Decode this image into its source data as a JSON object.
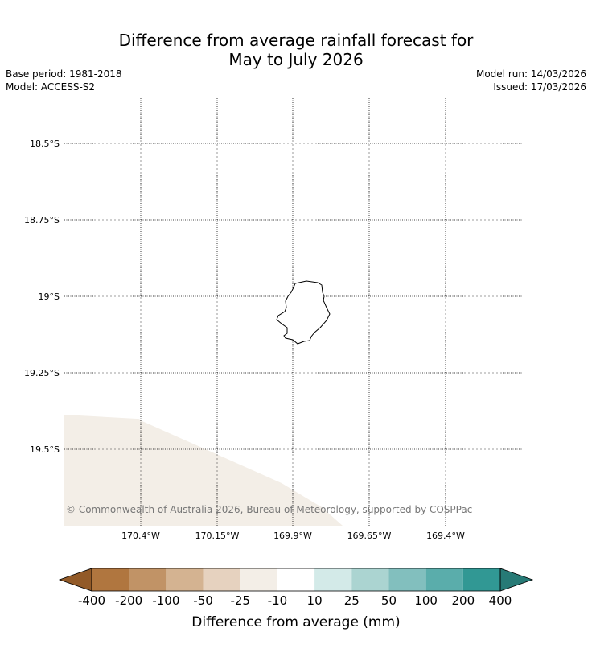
{
  "header": {
    "title_line1": "Difference from average rainfall forecast for",
    "title_line2": "May to July 2026",
    "base_period": "Base period: 1981-2018",
    "model": "Model: ACCESS-S2",
    "model_run": "Model run: 14/03/2026",
    "issued": "Issued: 17/03/2026"
  },
  "map": {
    "lat_labels": [
      "18.5°S",
      "18.75°S",
      "19°S",
      "19.25°S",
      "19.5°S"
    ],
    "lon_labels": [
      "170.4°W",
      "170.15°W",
      "169.9°W",
      "169.65°W",
      "169.4°W"
    ],
    "copyright": "© Commonwealth of Australia 2026, Bureau of Meteorology, supported by COSPPac",
    "land_name": "Niue",
    "forecast_fill_color": "#f3eee7"
  },
  "colorbar": {
    "title": "Difference from average (mm)",
    "tick_labels": [
      "-400",
      "-200",
      "-100",
      "-50",
      "-25",
      "-10",
      "10",
      "25",
      "50",
      "100",
      "200",
      "400"
    ],
    "colors": [
      "#925a28",
      "#b0763f",
      "#c19366",
      "#d4b391",
      "#e6d2bf",
      "#f3eee7",
      "#ffffff",
      "#d3eae8",
      "#abd4d1",
      "#82bfbe",
      "#5aadab",
      "#319894",
      "#277a76"
    ]
  }
}
